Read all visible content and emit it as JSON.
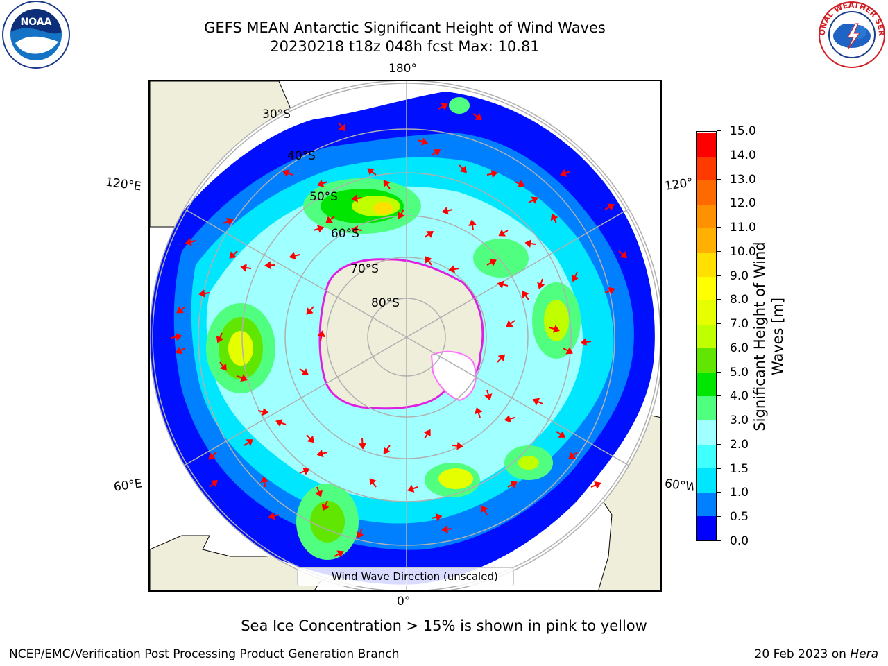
{
  "header": {
    "title_line1": "GEFS MEAN Antarctic Significant Height of Wind Waves",
    "title_line2": "20230218 t18z 048h fcst   Max: 10.81"
  },
  "logos": {
    "noaa_text": "NOAA",
    "nws_text": "NATIONAL WEATHER SERVICE"
  },
  "map": {
    "projection": "south polar stereographic",
    "longitude_labels": {
      "top": "180°",
      "bottom": "0°",
      "left_upper": "120°E",
      "left_lower": "60°E",
      "right_upper": "120°",
      "right_lower": "60°W"
    },
    "latitude_labels": [
      "30°S",
      "40°S",
      "50°S",
      "60°S",
      "70°S",
      "80°S"
    ],
    "legend_label": "Wind Wave Direction (unscaled)"
  },
  "colorbar": {
    "title": "Significant Height of Wind Waves [m]",
    "title_line1": "Significant Height of Wind",
    "title_line2": "Waves [m]",
    "ticks": [
      "0.0",
      "0.5",
      "1.0",
      "1.5",
      "2.0",
      "3.0",
      "4.0",
      "5.0",
      "6.0",
      "7.0",
      "8.0",
      "9.0",
      "10.0",
      "11.0",
      "12.0",
      "13.0",
      "14.0",
      "15.0"
    ],
    "colors": [
      "#0000ff",
      "#0080ff",
      "#00e6ff",
      "#40ffff",
      "#a0ffff",
      "#50ff80",
      "#00e600",
      "#60e600",
      "#c0ff00",
      "#e6ff00",
      "#ffff00",
      "#ffe000",
      "#ffb000",
      "#ff9000",
      "#ff6a00",
      "#ff3a00",
      "#ff0000"
    ]
  },
  "ice_note": "Sea Ice Concentration > 15% is shown in pink to yellow",
  "footer": {
    "left": "NCEP/EMC/Verification Post Processing Product Generation Branch",
    "right_prefix": "20 Feb 2023 on ",
    "right_machine": "Hera"
  }
}
